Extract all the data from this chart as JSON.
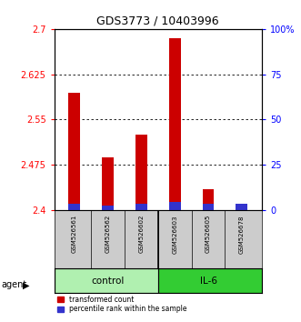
{
  "title": "GDS3773 / 10403996",
  "samples": [
    "GSM526561",
    "GSM526562",
    "GSM526602",
    "GSM526603",
    "GSM526605",
    "GSM526678"
  ],
  "red_values": [
    2.595,
    2.487,
    2.525,
    2.685,
    2.435,
    2.41
  ],
  "blue_values": [
    3.5,
    2.5,
    3.5,
    4.5,
    3.5,
    3.5
  ],
  "y_min": 2.4,
  "y_max": 2.7,
  "y_ticks_left": [
    2.4,
    2.475,
    2.55,
    2.625,
    2.7
  ],
  "y_ticks_right": [
    0,
    25,
    50,
    75,
    100
  ],
  "bar_color": "#cc0000",
  "blue_color": "#3333cc",
  "bar_width": 0.35,
  "legend_red": "transformed count",
  "legend_blue": "percentile rank within the sample",
  "control_color": "#b0f0b0",
  "il6_color": "#33cc33",
  "sample_label_bg": "#cccccc"
}
